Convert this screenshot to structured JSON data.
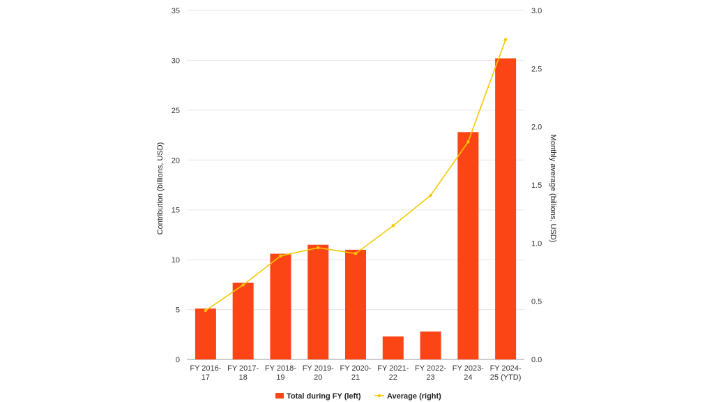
{
  "chart_data": {
    "type": "bar",
    "categories": [
      [
        "FY 2016-",
        "17"
      ],
      [
        "FY 2017-",
        "18"
      ],
      [
        "FY 2018-",
        "19"
      ],
      [
        "FY 2019-",
        "20"
      ],
      [
        "FY 2020-",
        "21"
      ],
      [
        "FY 2021-",
        "22"
      ],
      [
        "FY 2022-",
        "23"
      ],
      [
        "FY 2023-",
        "24"
      ],
      [
        "FY 2024-",
        "25 (YTD)"
      ]
    ],
    "series": [
      {
        "name": "Total during FY (left)",
        "type": "bar",
        "axis": "left",
        "color": "#fc4514",
        "values": [
          5.1,
          7.7,
          10.6,
          11.5,
          11.0,
          2.3,
          2.8,
          22.8,
          30.2
        ]
      },
      {
        "name": "Average (right)",
        "type": "line",
        "axis": "right",
        "color": "#f5c800",
        "values": [
          0.42,
          0.64,
          0.89,
          0.96,
          0.91,
          1.15,
          1.41,
          1.87,
          2.75
        ]
      }
    ],
    "ylabel": "Contribution (billions, USD)",
    "y2label": "Monthly average (billions, USD)",
    "ylim": [
      0,
      35
    ],
    "y2lim": [
      0,
      3.0
    ],
    "yticks": [
      "0",
      "5",
      "10",
      "15",
      "20",
      "25",
      "30",
      "35"
    ],
    "y2ticks": [
      "0.0",
      "0.5",
      "1.0",
      "1.5",
      "2.0",
      "2.5",
      "3.0"
    ],
    "grid": true,
    "legend": "bottom"
  }
}
